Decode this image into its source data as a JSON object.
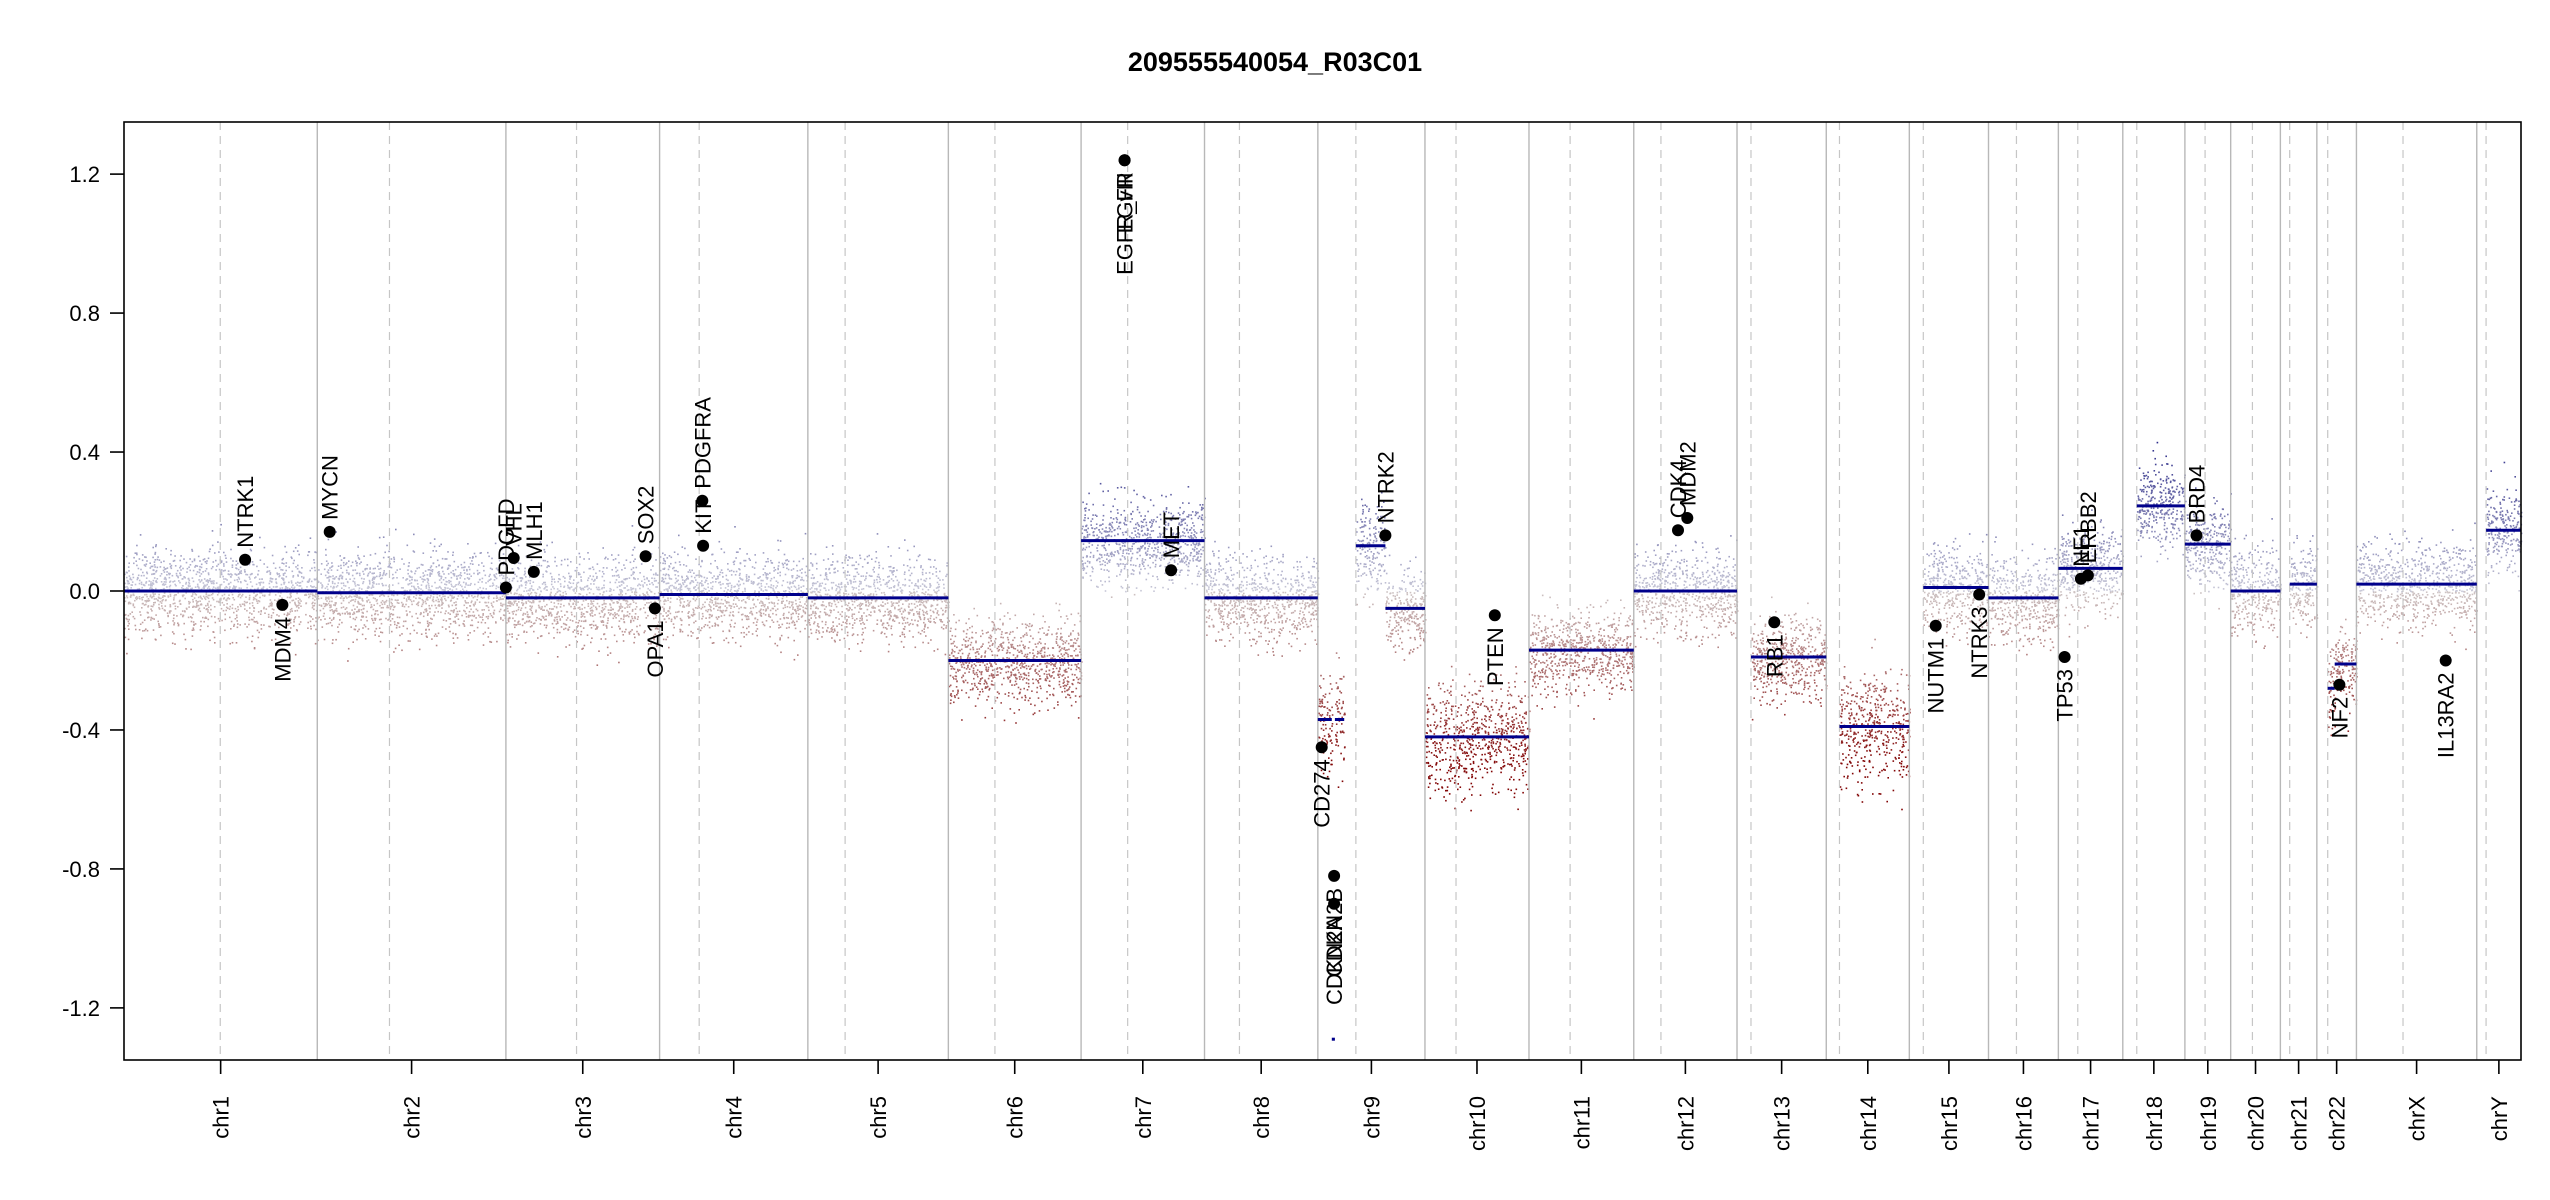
{
  "chart_data": {
    "type": "scatter",
    "title": "209555540054_R03C01",
    "xlabel": "",
    "ylabel": "",
    "ylim": [
      -1.35,
      1.35
    ],
    "yticks": [
      -1.2,
      -0.8,
      -0.4,
      0.0,
      0.4,
      0.8,
      1.2
    ],
    "ytick_labels": [
      "-1.2",
      "-0.8",
      "-0.4",
      "0.0",
      "0.4",
      "0.8",
      "1.2"
    ],
    "x_unit": "genome position (Mb, cumulative)",
    "colors": {
      "gain": "#00008b",
      "loss": "#8b0000",
      "neutral": "#bbbbbb",
      "segment": "#00008b",
      "gene_dot": "#000000"
    },
    "chromosomes": [
      {
        "name": "chr1",
        "start": 0,
        "end": 249,
        "centromere": 124
      },
      {
        "name": "chr2",
        "start": 249,
        "end": 492,
        "centromere": 342
      },
      {
        "name": "chr3",
        "start": 492,
        "end": 690,
        "centromere": 583
      },
      {
        "name": "chr4",
        "start": 690,
        "end": 881,
        "centromere": 741
      },
      {
        "name": "chr5",
        "start": 881,
        "end": 1062,
        "centromere": 929
      },
      {
        "name": "chr6",
        "start": 1062,
        "end": 1233,
        "centromere": 1122
      },
      {
        "name": "chr7",
        "start": 1233,
        "end": 1392,
        "centromere": 1293
      },
      {
        "name": "chr8",
        "start": 1392,
        "end": 1538,
        "centromere": 1437
      },
      {
        "name": "chr9",
        "start": 1538,
        "end": 1676,
        "centromere": 1587
      },
      {
        "name": "chr10",
        "start": 1676,
        "end": 1810,
        "centromere": 1716
      },
      {
        "name": "chr11",
        "start": 1810,
        "end": 1945,
        "centromere": 1863
      },
      {
        "name": "chr12",
        "start": 1945,
        "end": 2078,
        "centromere": 1980
      },
      {
        "name": "chr13",
        "start": 2078,
        "end": 2193,
        "centromere": 2096
      },
      {
        "name": "chr14",
        "start": 2193,
        "end": 2300,
        "centromere": 2210
      },
      {
        "name": "chr15",
        "start": 2300,
        "end": 2402,
        "centromere": 2318
      },
      {
        "name": "chr16",
        "start": 2402,
        "end": 2492,
        "centromere": 2438
      },
      {
        "name": "chr17",
        "start": 2492,
        "end": 2575,
        "centromere": 2517
      },
      {
        "name": "chr18",
        "start": 2575,
        "end": 2655,
        "centromere": 2593
      },
      {
        "name": "chr19",
        "start": 2655,
        "end": 2714,
        "centromere": 2681
      },
      {
        "name": "chr20",
        "start": 2714,
        "end": 2778,
        "centromere": 2742
      },
      {
        "name": "chr21",
        "start": 2778,
        "end": 2825,
        "centromere": 2790
      },
      {
        "name": "chr22",
        "start": 2825,
        "end": 2876,
        "centromere": 2839
      },
      {
        "name": "chrX",
        "start": 2876,
        "end": 3031,
        "centromere": 2936
      },
      {
        "name": "chrY",
        "start": 3031,
        "end": 3088,
        "centromere": 3043
      }
    ],
    "segments": [
      {
        "x0": 0,
        "x1": 249,
        "y": 0.0
      },
      {
        "x0": 249,
        "x1": 492,
        "y": -0.005
      },
      {
        "x0": 492,
        "x1": 690,
        "y": -0.02
      },
      {
        "x0": 690,
        "x1": 881,
        "y": -0.01
      },
      {
        "x0": 881,
        "x1": 1062,
        "y": -0.02
      },
      {
        "x0": 1062,
        "x1": 1233,
        "y": -0.2
      },
      {
        "x0": 1233,
        "x1": 1392,
        "y": 0.145
      },
      {
        "x0": 1392,
        "x1": 1538,
        "y": -0.02
      },
      {
        "x0": 1538,
        "x1": 1556,
        "y": -0.37
      },
      {
        "x0": 1556,
        "x1": 1560,
        "y": -1.29
      },
      {
        "x0": 1560,
        "x1": 1572,
        "y": -0.37
      },
      {
        "x0": 1587,
        "x1": 1625,
        "y": 0.13
      },
      {
        "x0": 1625,
        "x1": 1676,
        "y": -0.05
      },
      {
        "x0": 1676,
        "x1": 1810,
        "y": -0.42
      },
      {
        "x0": 1810,
        "x1": 1945,
        "y": -0.17
      },
      {
        "x0": 1945,
        "x1": 2078,
        "y": 0.0
      },
      {
        "x0": 2096,
        "x1": 2193,
        "y": -0.19
      },
      {
        "x0": 2210,
        "x1": 2300,
        "y": -0.39
      },
      {
        "x0": 2318,
        "x1": 2402,
        "y": 0.01
      },
      {
        "x0": 2402,
        "x1": 2492,
        "y": -0.02
      },
      {
        "x0": 2492,
        "x1": 2575,
        "y": 0.065
      },
      {
        "x0": 2593,
        "x1": 2655,
        "y": 0.245
      },
      {
        "x0": 2655,
        "x1": 2714,
        "y": 0.135
      },
      {
        "x0": 2714,
        "x1": 2778,
        "y": 0.0
      },
      {
        "x0": 2790,
        "x1": 2825,
        "y": 0.02
      },
      {
        "x0": 2839,
        "x1": 2848,
        "y": -0.28
      },
      {
        "x0": 2848,
        "x1": 2876,
        "y": -0.21
      },
      {
        "x0": 2876,
        "x1": 3031,
        "y": 0.02
      },
      {
        "x0": 3043,
        "x1": 3088,
        "y": 0.175
      }
    ],
    "genes": [
      {
        "name": "NTRK1",
        "x": 156,
        "y": 0.09,
        "label_side": "above"
      },
      {
        "name": "MDM4",
        "x": 204,
        "y": -0.04,
        "label_side": "below"
      },
      {
        "name": "MYCN",
        "x": 265,
        "y": 0.17,
        "label_side": "above"
      },
      {
        "name": "PDGFD",
        "x": 492,
        "y": 0.01,
        "label_side": "above"
      },
      {
        "name": "VHL",
        "x": 502,
        "y": 0.095,
        "label_side": "above"
      },
      {
        "name": "MLH1",
        "x": 528,
        "y": 0.055,
        "label_side": "above"
      },
      {
        "name": "SOX2",
        "x": 672,
        "y": 0.1,
        "label_side": "above"
      },
      {
        "name": "OPA1",
        "x": 684,
        "y": -0.05,
        "label_side": "below"
      },
      {
        "name": "PDGFRA",
        "x": 745,
        "y": 0.26,
        "label_side": "above"
      },
      {
        "name": "KIT",
        "x": 746,
        "y": 0.13,
        "label_side": "above"
      },
      {
        "name": "EGFR",
        "x": 1289,
        "y": 1.24,
        "label_side": "below"
      },
      {
        "name": "EGFR_vIII",
        "x": 1289,
        "y": 1.24,
        "label_side": "below"
      },
      {
        "name": "MET",
        "x": 1349,
        "y": 0.06,
        "label_side": "above"
      },
      {
        "name": "CD274",
        "x": 1543,
        "y": -0.45,
        "label_side": "below"
      },
      {
        "name": "CDKN2B",
        "x": 1559,
        "y": -0.82,
        "label_side": "below"
      },
      {
        "name": "CDKN2A",
        "x": 1559,
        "y": -0.9,
        "label_side": "below"
      },
      {
        "name": "NTRK2",
        "x": 1625,
        "y": 0.16,
        "label_side": "above"
      },
      {
        "name": "PTEN",
        "x": 1766,
        "y": -0.07,
        "label_side": "below"
      },
      {
        "name": "CDK4",
        "x": 2002,
        "y": 0.175,
        "label_side": "above"
      },
      {
        "name": "MDM2",
        "x": 2014,
        "y": 0.21,
        "label_side": "above"
      },
      {
        "name": "RB1",
        "x": 2126,
        "y": -0.09,
        "label_side": "below"
      },
      {
        "name": "NUTM1",
        "x": 2334,
        "y": -0.1,
        "label_side": "below"
      },
      {
        "name": "NTRK3",
        "x": 2390,
        "y": -0.01,
        "label_side": "below"
      },
      {
        "name": "TP53",
        "x": 2500,
        "y": -0.19,
        "label_side": "below"
      },
      {
        "name": "NF1",
        "x": 2521,
        "y": 0.035,
        "label_side": "above"
      },
      {
        "name": "ERBB2",
        "x": 2530,
        "y": 0.045,
        "label_side": "above"
      },
      {
        "name": "BRD4",
        "x": 2670,
        "y": 0.16,
        "label_side": "above"
      },
      {
        "name": "NF2",
        "x": 2854,
        "y": -0.27,
        "label_side": "below"
      },
      {
        "name": "IL13RA2",
        "x": 2991,
        "y": -0.2,
        "label_side": "below"
      }
    ]
  }
}
